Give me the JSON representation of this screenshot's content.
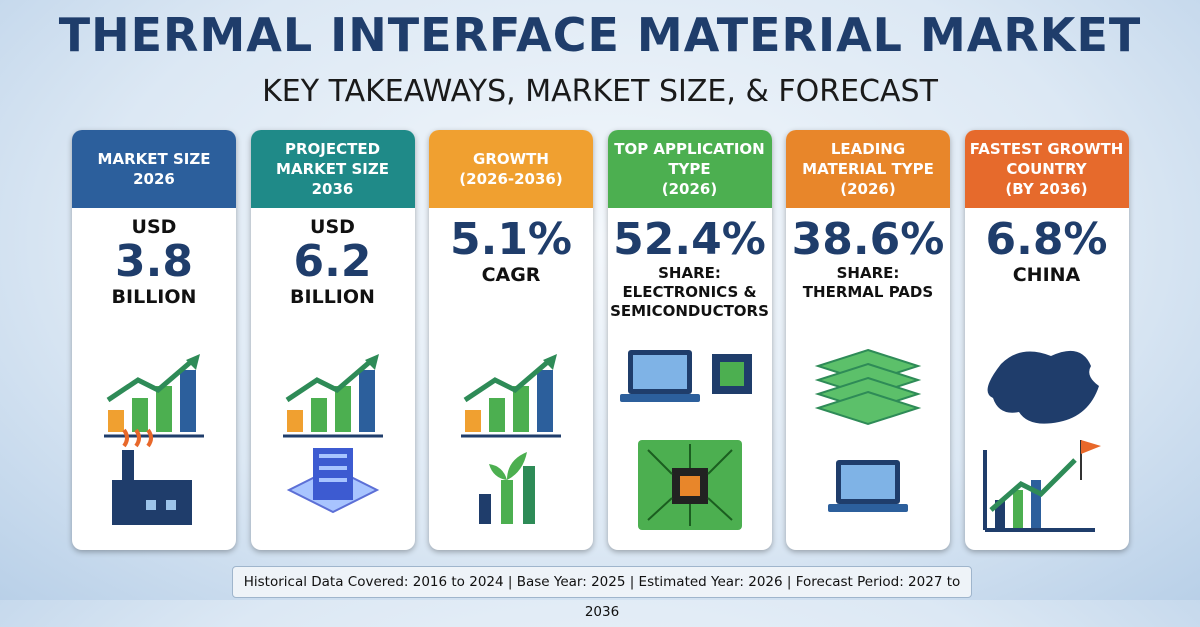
{
  "header": {
    "title": "THERMAL INTERFACE MATERIAL MARKET",
    "subtitle": "KEY TAKEAWAYS, MARKET SIZE, & FORECAST"
  },
  "cards": [
    {
      "header": [
        "MARKET SIZE",
        "2026"
      ],
      "above": [
        "USD"
      ],
      "value": "3.8",
      "below": [
        "BILLION"
      ]
    },
    {
      "header": [
        "PROJECTED",
        "MARKET SIZE",
        "2036"
      ],
      "above": [
        "USD"
      ],
      "value": "6.2",
      "below": [
        "BILLION"
      ]
    },
    {
      "header": [
        "GROWTH",
        "(2026-2036)"
      ],
      "value": "5.1%",
      "below": [
        "CAGR"
      ]
    },
    {
      "header": [
        "TOP APPLICATION",
        "TYPE",
        "(2026)"
      ],
      "value": "52.4%",
      "below": [
        "SHARE:",
        "ELECTRONICS &",
        "SEMICONDUCTORS"
      ]
    },
    {
      "header": [
        "LEADING",
        "MATERIAL TYPE",
        "(2026)"
      ],
      "value": "38.6%",
      "below": [
        "SHARE:",
        "THERMAL PADS"
      ]
    },
    {
      "header": [
        "FASTEST GROWTH",
        "COUNTRY",
        "(BY 2036)"
      ],
      "value": "6.8%",
      "below": [
        "CHINA"
      ]
    }
  ],
  "footer": "Historical Data Covered: 2016 to 2024 | Base Year: 2025 | Estimated Year: 2026 | Forecast Period: 2027 to 2036"
}
